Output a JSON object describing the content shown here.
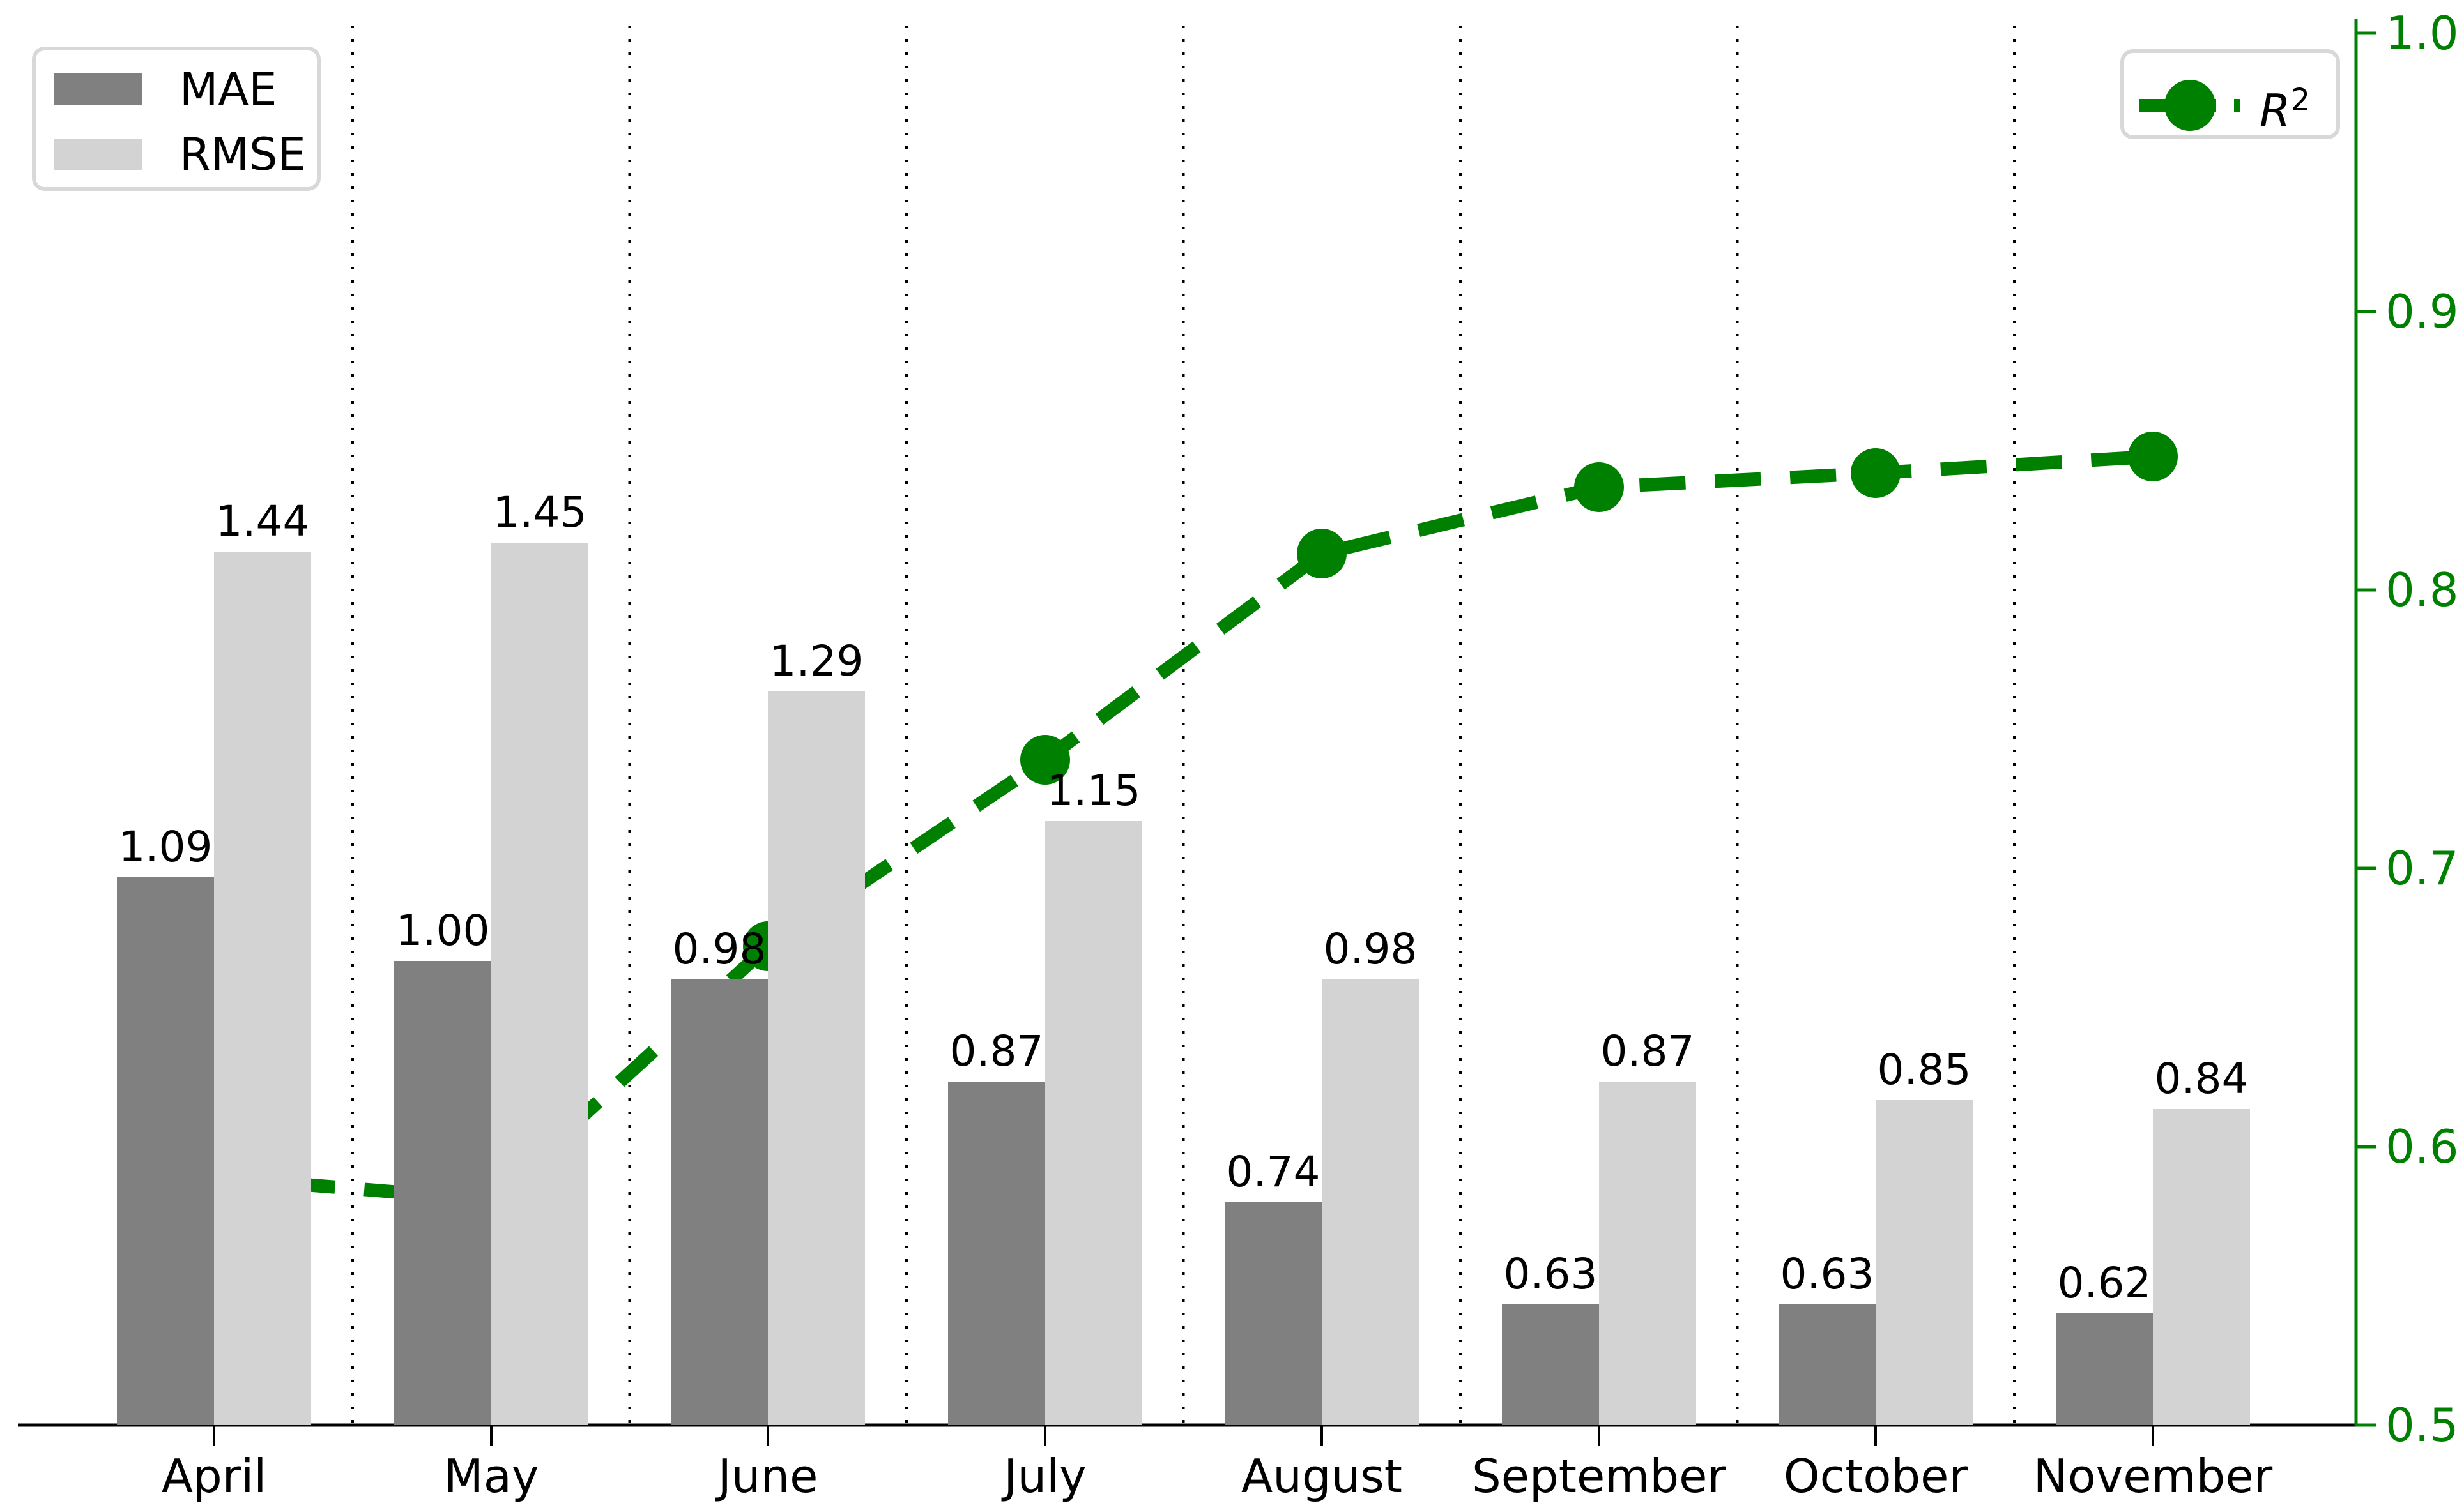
{
  "chart_data": {
    "type": "combo",
    "categories": [
      "April",
      "May",
      "June",
      "July",
      "August",
      "September",
      "October",
      "November"
    ],
    "series": [
      {
        "name": "MAE",
        "type": "bar",
        "color": "#808080",
        "values": [
          1.09,
          1.0,
          0.98,
          0.87,
          0.74,
          0.63,
          0.63,
          0.62
        ],
        "labels": [
          "1.09",
          "1.00",
          "0.98",
          "0.87",
          "0.74",
          "0.63",
          "0.63",
          "0.62"
        ]
      },
      {
        "name": "RMSE",
        "type": "bar",
        "color": "#d3d3d3",
        "values": [
          1.44,
          1.45,
          1.29,
          1.15,
          0.98,
          0.87,
          0.85,
          0.84
        ],
        "labels": [
          "1.44",
          "1.45",
          "1.29",
          "1.15",
          "0.98",
          "0.87",
          "0.85",
          "0.84"
        ]
      },
      {
        "name": "R²",
        "type": "line",
        "color": "#008000",
        "axis": "right",
        "style": "dashed-with-circle-markers",
        "values": [
          0.589,
          0.581,
          0.672,
          0.739,
          0.813,
          0.837,
          0.842,
          0.848
        ]
      }
    ],
    "title": "",
    "xlabel": "",
    "ylabel": "",
    "right_axis": {
      "range": [
        0.5,
        1.0
      ],
      "tick_labels": [
        "1.0",
        "0.9",
        "0.8",
        "0.7",
        "0.6",
        "0.5"
      ],
      "tick_values": [
        1.0,
        0.9,
        0.8,
        0.7,
        0.6,
        0.5
      ],
      "color": "#008000"
    },
    "left_axis": {
      "visible": false,
      "range": [
        0.5,
        2.0
      ]
    },
    "gridlines": {
      "vertical_separators": "dotted",
      "between_groups": true
    },
    "legend_positions": [
      "upper-left",
      "upper-right"
    ]
  },
  "legend_left": {
    "items": [
      {
        "label": "MAE",
        "color": "#808080"
      },
      {
        "label": "RMSE",
        "color": "#d3d3d3"
      }
    ]
  },
  "legend_right": {
    "label_base": "R",
    "label_sup": "2",
    "marker_color": "#008000"
  },
  "colors": {
    "mae_bar": "#808080",
    "rmse_bar": "#d3d3d3",
    "r2_line": "#008000",
    "axis_black": "#000000",
    "legend_border": "#d8d8d8",
    "background": "#ffffff"
  }
}
